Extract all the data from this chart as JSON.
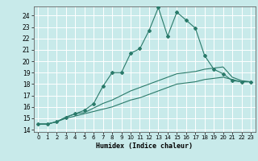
{
  "xlabel": "Humidex (Indice chaleur)",
  "bg_color": "#c8eaea",
  "grid_color": "#ffffff",
  "line_color": "#2a7a6a",
  "xlim": [
    -0.5,
    23.5
  ],
  "ylim": [
    13.8,
    24.8
  ],
  "xticks": [
    0,
    1,
    2,
    3,
    4,
    5,
    6,
    7,
    8,
    9,
    10,
    11,
    12,
    13,
    14,
    15,
    16,
    17,
    18,
    19,
    20,
    21,
    22,
    23
  ],
  "yticks": [
    14,
    15,
    16,
    17,
    18,
    19,
    20,
    21,
    22,
    23,
    24
  ],
  "line1_x": [
    0,
    1,
    2,
    3,
    4,
    5,
    6,
    7,
    8,
    9,
    10,
    11,
    12,
    13,
    14,
    15,
    16,
    17,
    18,
    19,
    20,
    21,
    22,
    23
  ],
  "line1_y": [
    14.5,
    14.5,
    14.7,
    15.1,
    15.4,
    15.7,
    16.3,
    17.8,
    19.0,
    19.0,
    20.7,
    21.1,
    22.7,
    24.7,
    22.2,
    24.3,
    23.6,
    22.9,
    20.5,
    19.3,
    18.9,
    18.3,
    18.2,
    18.2
  ],
  "line2_x": [
    0,
    1,
    2,
    3,
    4,
    5,
    6,
    7,
    8,
    9,
    10,
    11,
    12,
    13,
    14,
    15,
    16,
    17,
    18,
    19,
    20,
    21,
    22,
    23
  ],
  "line2_y": [
    14.5,
    14.5,
    14.7,
    15.1,
    15.4,
    15.5,
    15.9,
    16.3,
    16.6,
    17.0,
    17.4,
    17.7,
    18.0,
    18.3,
    18.6,
    18.9,
    19.0,
    19.1,
    19.3,
    19.4,
    19.5,
    18.6,
    18.3,
    18.2
  ],
  "line3_x": [
    0,
    1,
    2,
    3,
    4,
    5,
    6,
    7,
    8,
    9,
    10,
    11,
    12,
    13,
    14,
    15,
    16,
    17,
    18,
    19,
    20,
    21,
    22,
    23
  ],
  "line3_y": [
    14.5,
    14.5,
    14.7,
    15.0,
    15.2,
    15.4,
    15.6,
    15.8,
    16.0,
    16.3,
    16.6,
    16.8,
    17.1,
    17.4,
    17.7,
    18.0,
    18.1,
    18.2,
    18.4,
    18.5,
    18.6,
    18.4,
    18.2,
    18.2
  ]
}
